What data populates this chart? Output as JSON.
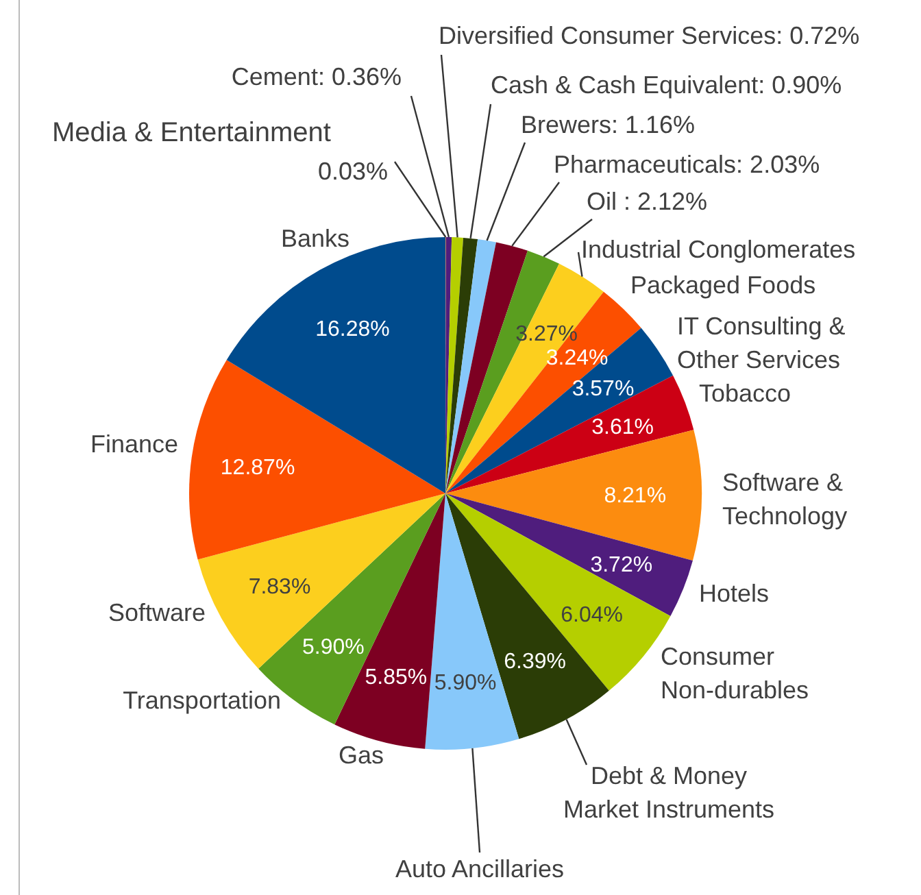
{
  "chart_data": {
    "type": "pie",
    "categories": [
      "Media & Entertainment",
      "Cement",
      "Diversified Consumer Services",
      "Cash & Cash Equivalent",
      "Brewers",
      "Pharmaceuticals",
      "Oil ",
      "Industrial Conglomerates",
      "Packaged Foods",
      "IT Consulting & Other Services",
      "Tobacco",
      "Software & Technology",
      "Hotels",
      "Consumer Non-durables",
      "Debt & Money Market Instruments",
      "Auto Ancillaries",
      "Gas",
      "Transportation",
      "Software",
      "Finance",
      "Banks"
    ],
    "values": [
      0.03,
      0.36,
      0.72,
      0.9,
      1.16,
      2.03,
      2.12,
      3.27,
      3.24,
      3.57,
      3.61,
      8.21,
      3.72,
      6.04,
      6.39,
      5.9,
      5.85,
      5.9,
      7.83,
      12.87,
      16.28
    ],
    "value_labels": [
      "0.03%",
      "0.36%",
      "0.72%",
      "0.90%",
      "1.16%",
      "2.03%",
      "2.12%",
      "3.27%",
      "3.24%",
      "3.57%",
      "3.61%",
      "8.21%",
      "3.72%",
      "6.04%",
      "6.39%",
      "5.90%",
      "5.85%",
      "5.90%",
      "7.83%",
      "12.87%",
      "16.28%"
    ],
    "colors": [
      "#fc8c0f",
      "#4f1d7d",
      "#b5cf00",
      "#2b3d06",
      "#87c8fa",
      "#7d0022",
      "#5a9e1f",
      "#fccf1e",
      "#fc4f00",
      "#004b8d",
      "#cc0014",
      "#fc8c0f",
      "#4f1d7d",
      "#b5cf00",
      "#2b3d06",
      "#87c8fa",
      "#7d0022",
      "#5a9e1f",
      "#fccf1e",
      "#fc4f00",
      "#004b8d"
    ]
  }
}
